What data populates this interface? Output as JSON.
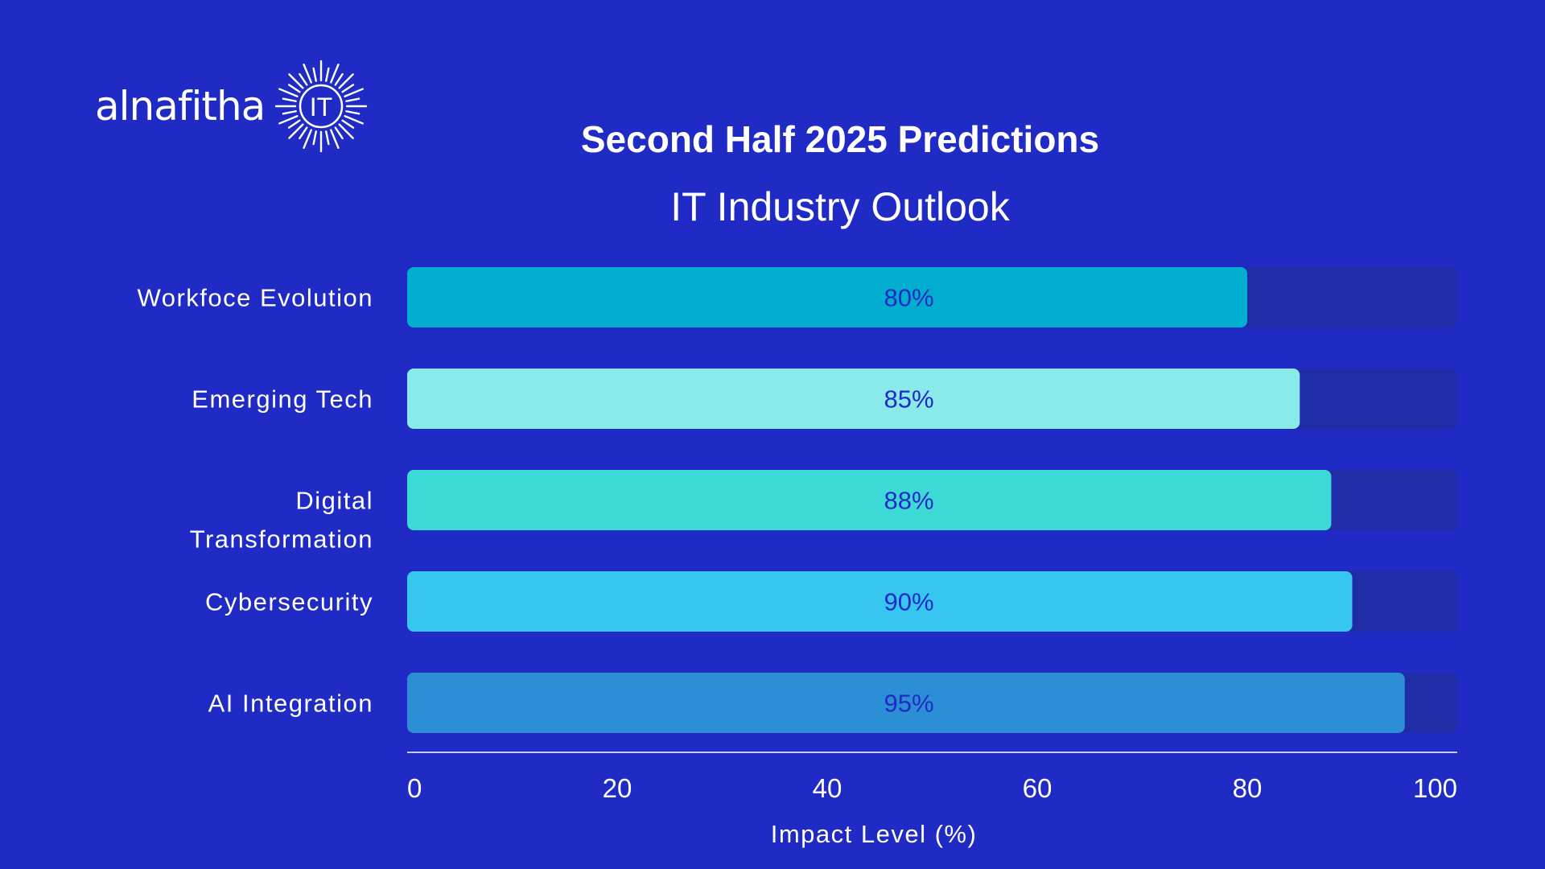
{
  "logo": {
    "wordmark": "alnafitha",
    "badge": "IT"
  },
  "colors": {
    "background": "#1f2bc4",
    "track": "#1f2ca6",
    "bar_label": "#1f2bc4",
    "axis": "#ffffff"
  },
  "chart_data": {
    "type": "bar",
    "orientation": "horizontal",
    "title": "Second Half 2025 Predictions",
    "subtitle": "IT Industry Outlook",
    "xlabel": "Impact Level (%)",
    "xlim": [
      0,
      100
    ],
    "xticks": [
      0,
      20,
      40,
      60,
      80,
      100
    ],
    "grid": false,
    "categories": [
      {
        "label": [
          "Workfoce Evolution"
        ],
        "value": 80,
        "value_label": "80%",
        "color": "#02aecf"
      },
      {
        "label": [
          "Emerging Tech"
        ],
        "value": 85,
        "value_label": "85%",
        "color": "#8ae9e9"
      },
      {
        "label": [
          "Digital",
          "Transformation"
        ],
        "value": 88,
        "value_label": "88%",
        "color": "#3dd9d6"
      },
      {
        "label": [
          "Cybersecurity"
        ],
        "value": 90,
        "value_label": "90%",
        "color": "#36c6f0"
      },
      {
        "label": [
          "AI Integration"
        ],
        "value": 95,
        "value_label": "95%",
        "color": "#2c8fd6"
      }
    ]
  }
}
